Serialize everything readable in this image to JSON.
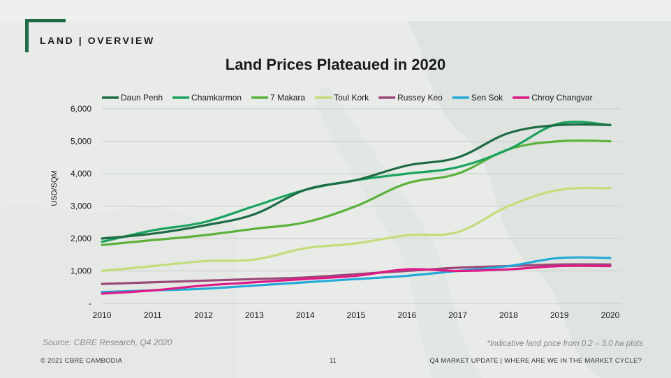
{
  "header": {
    "section_label": "LAND | OVERVIEW"
  },
  "source_text": "Source: CBRE Research, Q4 2020",
  "note_text": "*Indicative land price from 0.2 – 3.0 ha plots",
  "footer": {
    "left": "© 2021 CBRE CAMBODIA",
    "page_number": "11",
    "right": "Q4 MARKET UPDATE | WHERE ARE WE IN THE MARKET CYCLE?"
  },
  "chart_data": {
    "type": "line",
    "title": "Land Prices Plateaued in 2020",
    "xlabel": "",
    "ylabel": "USD/SQM",
    "x": [
      2010,
      2011,
      2012,
      2013,
      2014,
      2015,
      2016,
      2017,
      2018,
      2019,
      2020
    ],
    "ylim": [
      0,
      6000
    ],
    "yticks": [
      0,
      1000,
      2000,
      3000,
      4000,
      5000,
      6000
    ],
    "ytick_labels": [
      "-",
      "1,000",
      "2,000",
      "3,000",
      "4,000",
      "5,000",
      "6,000"
    ],
    "grid": true,
    "legend_position": "top",
    "series": [
      {
        "name": "Daun Penh",
        "color": "#1e6b44",
        "values": [
          2000,
          2150,
          2400,
          2750,
          3500,
          3800,
          4250,
          4500,
          5250,
          5500,
          5500
        ]
      },
      {
        "name": "Chamkarmon",
        "color": "#1aa35f",
        "values": [
          1900,
          2250,
          2500,
          3000,
          3500,
          3800,
          4000,
          4200,
          4750,
          5550,
          5500
        ]
      },
      {
        "name": "7 Makara",
        "color": "#5cb13c",
        "values": [
          1800,
          1950,
          2100,
          2300,
          2500,
          3000,
          3700,
          4000,
          4750,
          5000,
          5000
        ]
      },
      {
        "name": "Toul Kork",
        "color": "#c3dd7a",
        "values": [
          1000,
          1150,
          1300,
          1350,
          1700,
          1850,
          2100,
          2200,
          3000,
          3500,
          3550
        ]
      },
      {
        "name": "Russey Keo",
        "color": "#9a4a78",
        "values": [
          600,
          650,
          700,
          750,
          800,
          900,
          1000,
          1100,
          1150,
          1200,
          1200
        ]
      },
      {
        "name": "Sen Sok",
        "color": "#25a9d8",
        "values": [
          350,
          400,
          450,
          550,
          650,
          750,
          850,
          1000,
          1150,
          1400,
          1400
        ]
      },
      {
        "name": "Chroy Changvar",
        "color": "#dd1a86",
        "values": [
          300,
          400,
          550,
          650,
          750,
          850,
          1050,
          1000,
          1050,
          1150,
          1150
        ]
      }
    ]
  }
}
